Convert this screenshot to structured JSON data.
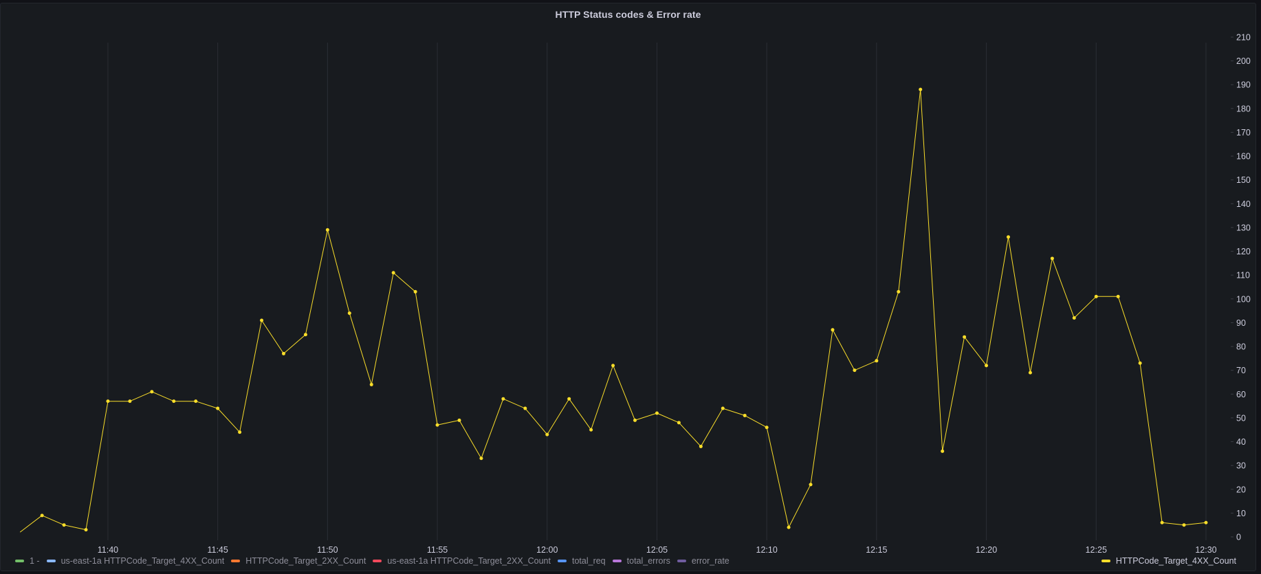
{
  "panel": {
    "title": "HTTP Status codes & Error rate"
  },
  "legend": {
    "items": [
      {
        "label": "1 -",
        "color": "#73BF69",
        "active": false
      },
      {
        "label": "us-east-1a HTTPCode_Target_4XX_Count",
        "color": "#8AB8FF",
        "active": false
      },
      {
        "label": "HTTPCode_Target_2XX_Count",
        "color": "#FF7830",
        "active": false
      },
      {
        "label": "us-east-1a HTTPCode_Target_2XX_Count",
        "color": "#F2495C",
        "active": false
      },
      {
        "label": "total_req",
        "color": "#5794F2",
        "active": false
      },
      {
        "label": "total_errors",
        "color": "#B877D9",
        "active": false
      },
      {
        "label": "error_rate",
        "color": "#705DA0",
        "active": false
      }
    ],
    "right_item": {
      "label": "HTTPCode_Target_4XX_Count",
      "color": "#FADE2A",
      "active": true
    }
  },
  "chart_data": {
    "type": "line",
    "title": "HTTP Status codes & Error rate",
    "xlabel": "",
    "ylabel": "",
    "ylim": [
      0,
      210
    ],
    "y_ticks": [
      0,
      10,
      20,
      30,
      40,
      50,
      60,
      70,
      80,
      90,
      100,
      110,
      120,
      130,
      140,
      150,
      160,
      170,
      180,
      190,
      200,
      210
    ],
    "x_tick_labels": [
      "11:40",
      "11:45",
      "11:50",
      "11:55",
      "12:00",
      "12:05",
      "12:10",
      "12:15",
      "12:20",
      "12:25",
      "12:30"
    ],
    "grid": {
      "vertical": true,
      "horizontal": false
    },
    "legend_position": "bottom",
    "axis_position": "right",
    "x": [
      "11:36",
      "11:37",
      "11:38",
      "11:39",
      "11:40",
      "11:41",
      "11:42",
      "11:43",
      "11:44",
      "11:45",
      "11:46",
      "11:47",
      "11:48",
      "11:49",
      "11:50",
      "11:51",
      "11:52",
      "11:53",
      "11:54",
      "11:55",
      "11:56",
      "11:57",
      "11:58",
      "11:59",
      "12:00",
      "12:01",
      "12:02",
      "12:03",
      "12:04",
      "12:05",
      "12:06",
      "12:07",
      "12:08",
      "12:09",
      "12:10",
      "12:11",
      "12:12",
      "12:13",
      "12:14",
      "12:15",
      "12:16",
      "12:17",
      "12:18",
      "12:19",
      "12:20",
      "12:21",
      "12:22",
      "12:23",
      "12:24",
      "12:25",
      "12:26",
      "12:27",
      "12:28",
      "12:29",
      "12:30"
    ],
    "series": [
      {
        "name": "HTTPCode_Target_4XX_Count",
        "color": "#FADE2A",
        "values": [
          2,
          9,
          5,
          3,
          57,
          57,
          61,
          57,
          57,
          54,
          44,
          91,
          77,
          85,
          129,
          94,
          64,
          111,
          103,
          47,
          49,
          33,
          58,
          54,
          43,
          58,
          45,
          72,
          49,
          52,
          48,
          38,
          54,
          51,
          46,
          4,
          22,
          87,
          70,
          74,
          103,
          188,
          36,
          84,
          72,
          126,
          69,
          117,
          92,
          101,
          101,
          73,
          6,
          5,
          6
        ]
      }
    ]
  }
}
